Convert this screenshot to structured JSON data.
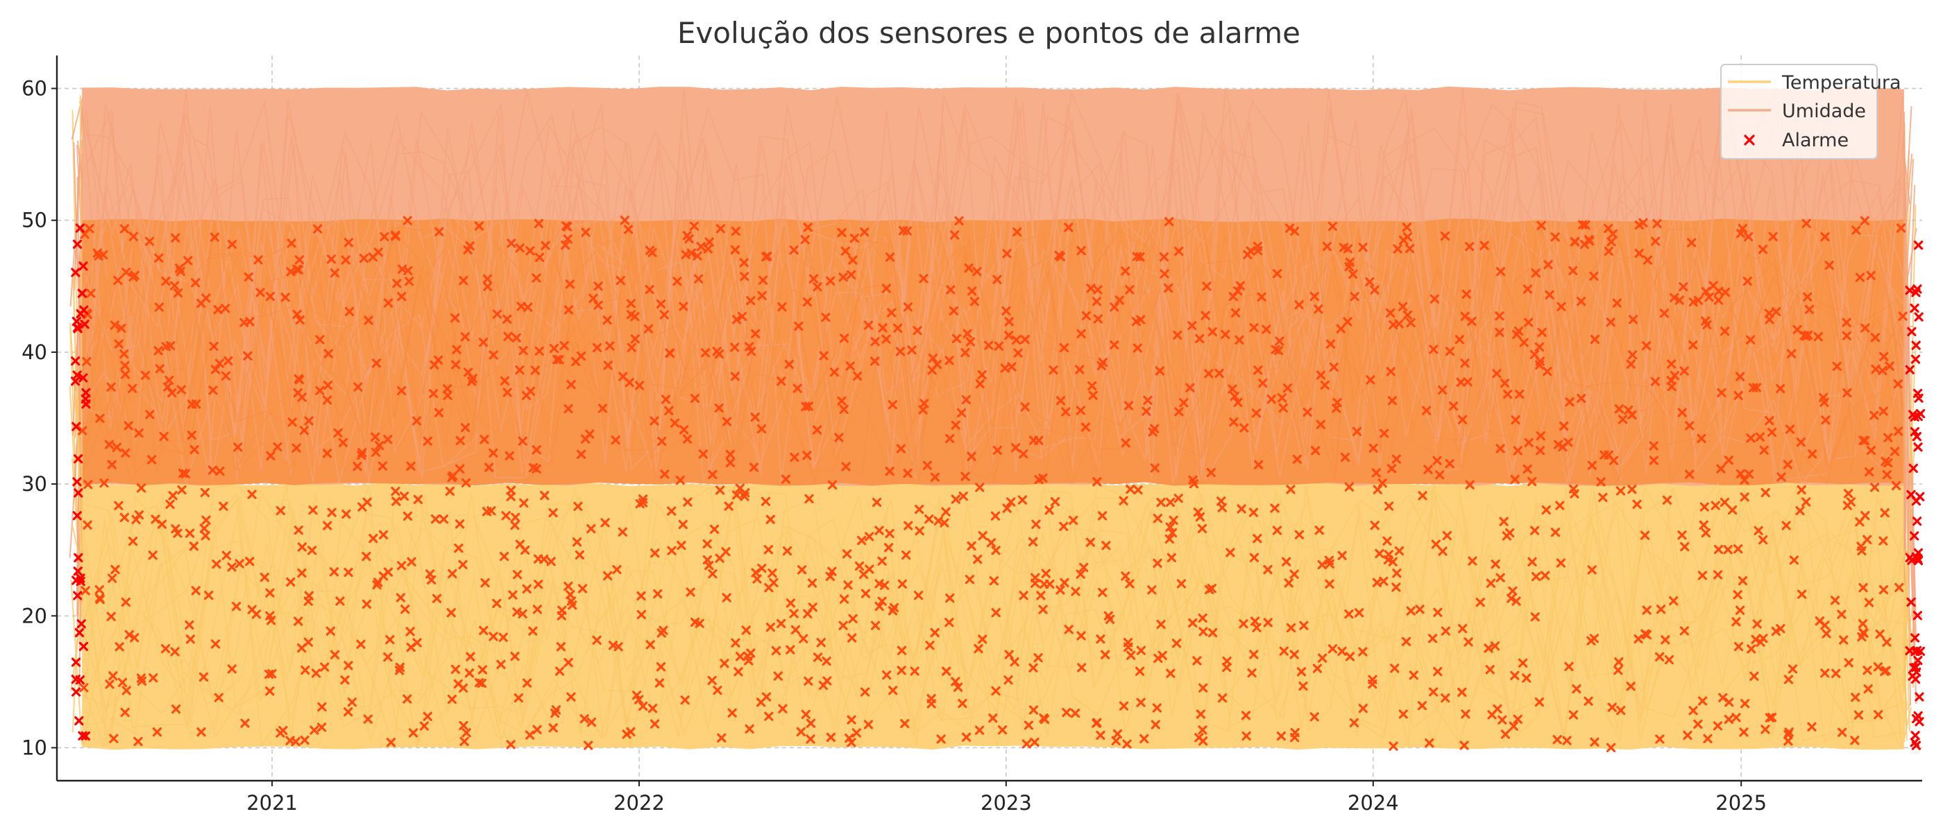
{
  "chart_data": {
    "type": "line",
    "title": "Evolução dos sensores e pontos de alarme",
    "xlabel": "",
    "ylabel": "",
    "x_range": [
      "2020-06-01",
      "2025-06-30"
    ],
    "x_ticks": [
      "2021",
      "2022",
      "2023",
      "2024",
      "2025"
    ],
    "y_range": [
      7.5,
      62.5
    ],
    "y_ticks": [
      10,
      20,
      30,
      40,
      50,
      60
    ],
    "grid": true,
    "grid_style": "dashed",
    "legend_position": "top-right",
    "series": [
      {
        "name": "Temperatura",
        "kind": "line",
        "color": "#FDD27A",
        "value_band": [
          10,
          30
        ],
        "description": "dense noisy daily readings uniformly spread between 10 and 30"
      },
      {
        "name": "Umidade",
        "kind": "line",
        "color": "#F7AE8A",
        "value_band": [
          30,
          60
        ],
        "description": "dense noisy daily readings uniformly spread between 30 and 60"
      },
      {
        "name": "Alarme",
        "kind": "scatter",
        "marker": "x",
        "color": "#FF0000",
        "value_band": [
          10,
          50
        ],
        "description": "alarm points scattered between 10 and 50 over the full date range"
      }
    ],
    "overlap_band": {
      "value_band": [
        30,
        50
      ],
      "color": "#F9954B"
    },
    "marker_display_color": "#FF4A10"
  }
}
